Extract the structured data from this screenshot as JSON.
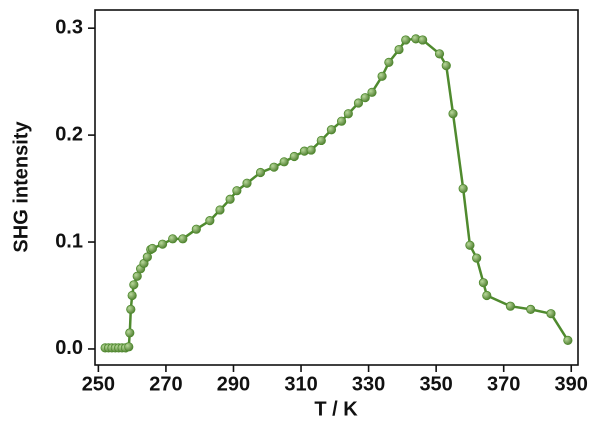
{
  "chart_data": {
    "type": "line",
    "x_label": "T / K",
    "y_label": "SHG intensity",
    "xlim": [
      249,
      392
    ],
    "ylim": [
      -0.015,
      0.317
    ],
    "xticks": [
      250,
      270,
      290,
      310,
      330,
      350,
      370,
      390
    ],
    "yticks": [
      {
        "value": 0,
        "label": "0.0"
      },
      0.1,
      0.2,
      0.3
    ],
    "series": [
      {
        "name": "SHG",
        "color": "#4f8a2e",
        "x": [
          252,
          253,
          254,
          255,
          256,
          257,
          258,
          259,
          259.3,
          259.6,
          260,
          260.5,
          261.5,
          262.5,
          263.5,
          264.5,
          265.5,
          266,
          269,
          272,
          275,
          279,
          283,
          286,
          289,
          291,
          294,
          298,
          302,
          305,
          308,
          311,
          313,
          316,
          319,
          322,
          324,
          327,
          329,
          331,
          334,
          336,
          339,
          341,
          344,
          346,
          351,
          353,
          355,
          358,
          360,
          362,
          364,
          365,
          372,
          378,
          384,
          389
        ],
        "values": [
          0.001,
          0.001,
          0.001,
          0.001,
          0.001,
          0.001,
          0.001,
          0.002,
          0.015,
          0.037,
          0.05,
          0.06,
          0.068,
          0.075,
          0.08,
          0.086,
          0.093,
          0.094,
          0.098,
          0.103,
          0.103,
          0.112,
          0.12,
          0.13,
          0.14,
          0.148,
          0.155,
          0.165,
          0.17,
          0.175,
          0.18,
          0.185,
          0.186,
          0.195,
          0.205,
          0.213,
          0.22,
          0.23,
          0.235,
          0.24,
          0.255,
          0.268,
          0.28,
          0.289,
          0.29,
          0.289,
          0.276,
          0.265,
          0.22,
          0.15,
          0.097,
          0.085,
          0.062,
          0.05,
          0.04,
          0.037,
          0.033,
          0.008
        ]
      }
    ]
  }
}
